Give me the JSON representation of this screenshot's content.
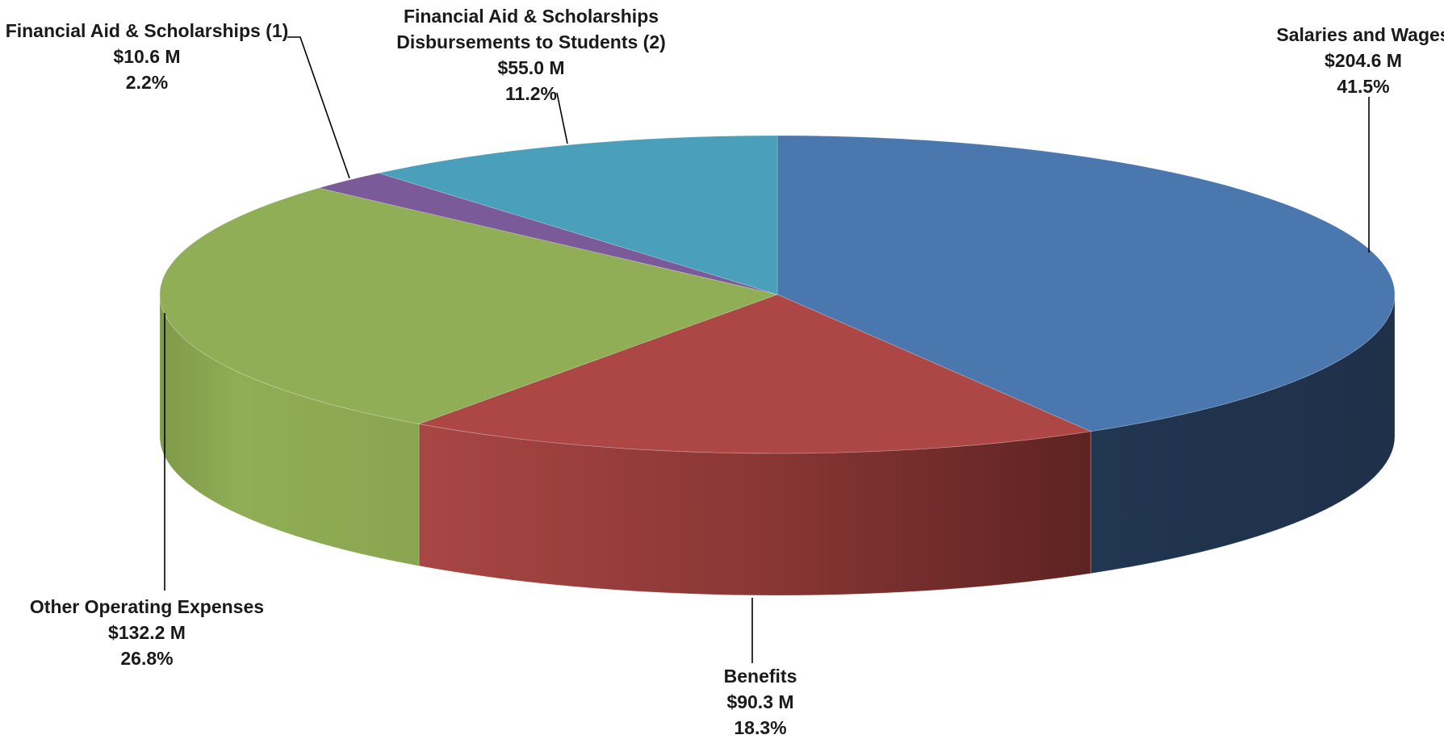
{
  "chart_data": {
    "type": "pie",
    "style": "3d",
    "unit": "$ M",
    "slices": [
      {
        "key": "salaries",
        "label": "Salaries and Wages",
        "amount": "$204.6 M",
        "percent": "41.5%",
        "value": 204.6,
        "color": "#4a78ae",
        "side_color": "#223551"
      },
      {
        "key": "benefits",
        "label": "Benefits",
        "amount": "$90.3 M",
        "percent": "18.3%",
        "value": 90.3,
        "color": "#ad4745",
        "side_color": "#7d2e2d"
      },
      {
        "key": "other",
        "label": "Other Operating Expenses",
        "amount": "$132.2 M",
        "percent": "26.8%",
        "value": 132.2,
        "color": "#8fae55",
        "side_color": "#8aa550"
      },
      {
        "key": "finaid1",
        "label": "Financial Aid & Scholarships (1)",
        "amount": "$10.6 M",
        "percent": "2.2%",
        "value": 10.6,
        "color": "#7a5a98",
        "side_color": "#5a4272"
      },
      {
        "key": "finaid2",
        "label": "Financial Aid & Scholarships",
        "label2": "Disbursements to Students (2)",
        "amount": "$55.0 M",
        "percent": "11.2%",
        "value": 55.0,
        "color": "#4aa0ba",
        "side_color": "#357a8e"
      }
    ]
  }
}
